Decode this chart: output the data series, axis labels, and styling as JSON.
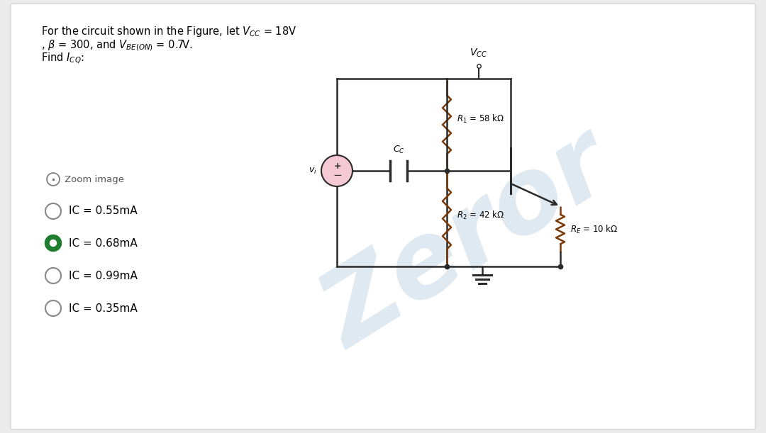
{
  "bg_color": "#ebebeb",
  "panel_color": "#ffffff",
  "title_line1": "For the circuit shown in the Figure, let $V_{CC}$ = 18V",
  "title_line2": ", $\\beta$ = 300, and $V_{BE(ON)}$ = 0.7V.",
  "title_line3": "Find $I_{CQ}$:",
  "zoom_label": "Zoom image",
  "options": [
    {
      "text": "IC = 0.55mA",
      "selected": false
    },
    {
      "text": "IC = 0.68mA",
      "selected": true
    },
    {
      "text": "IC = 0.99mA",
      "selected": false
    },
    {
      "text": "IC = 0.35mA",
      "selected": false
    }
  ],
  "selected_color": "#1e7d2e",
  "vcc_label": "$V_{CC}$",
  "r1_label": "$R_1$ = 58 kΩ",
  "r2_label": "$R_2$ = 42 kΩ",
  "re_label": "$R_E$ = 10 kΩ",
  "cc_label": "$C_C$",
  "vi_label": "$v_i$",
  "watermark_text": "Zeror",
  "watermark_color": "#b8cfe0",
  "watermark_alpha": 0.45,
  "circuit_wire_color": "#2a2a2a",
  "resistor_color": "#7a3a0a"
}
